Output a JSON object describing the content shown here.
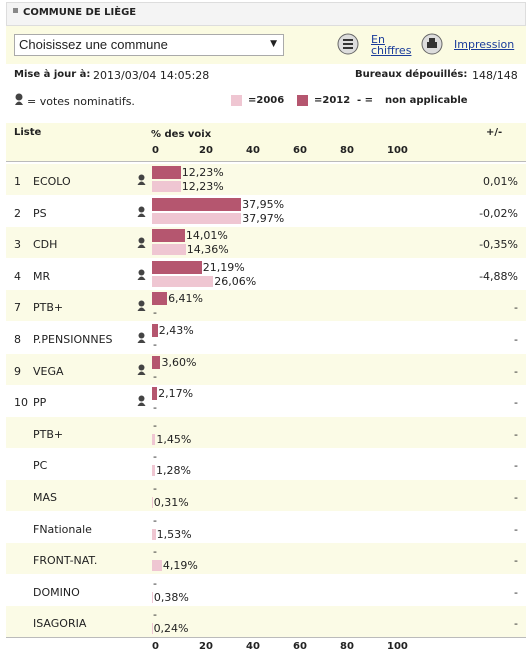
{
  "header": {
    "title": "COMMUNE DE LIÈGE"
  },
  "toolbar": {
    "select": "Choisissez une commune",
    "links": [
      "En chiffres",
      "Impression"
    ]
  },
  "info": {
    "updated_label": "Mise à jour à:",
    "updated": "2013/03/04 14:05:28",
    "bureaux_label": "Bureaux dépouillés:",
    "bureaux": "148/148"
  },
  "legend": {
    "nominatif": "= votes nominatifs.",
    "y2006": "=2006",
    "y2012": "=2012",
    "na_symbol": "- =",
    "na": "non applicable",
    "color_2006": "#efc6d2",
    "color_2012": "#b5566f"
  },
  "table": {
    "columns": [
      "Liste",
      "% des voix",
      "+/-"
    ],
    "ticks": [
      0,
      20,
      40,
      60,
      80,
      100
    ],
    "rows": [
      {
        "num": "1",
        "name": "ECOLO",
        "nominatif": true,
        "p2012": {
          "value": 12.23,
          "label": "12,23%"
        },
        "p2006": {
          "value": 12.23,
          "label": "12,23%"
        },
        "diff": "0,01%"
      },
      {
        "num": "2",
        "name": "PS",
        "nominatif": true,
        "p2012": {
          "value": 37.95,
          "label": "37,95%"
        },
        "p2006": {
          "value": 37.97,
          "label": "37,97%"
        },
        "diff": "-0,02%"
      },
      {
        "num": "3",
        "name": "CDH",
        "nominatif": true,
        "p2012": {
          "value": 14.01,
          "label": "14,01%"
        },
        "p2006": {
          "value": 14.36,
          "label": "14,36%"
        },
        "diff": "-0,35%"
      },
      {
        "num": "4",
        "name": "MR",
        "nominatif": true,
        "p2012": {
          "value": 21.19,
          "label": "21,19%"
        },
        "p2006": {
          "value": 26.06,
          "label": "26,06%"
        },
        "diff": "-4,88%"
      },
      {
        "num": "7",
        "name": "PTB+",
        "nominatif": true,
        "p2012": {
          "value": 6.41,
          "label": "6,41%"
        },
        "p2006": {
          "value": null,
          "label": "-"
        },
        "diff": "-"
      },
      {
        "num": "8",
        "name": "P.PENSIONNES",
        "nominatif": true,
        "p2012": {
          "value": 2.43,
          "label": "2,43%"
        },
        "p2006": {
          "value": null,
          "label": "-"
        },
        "diff": "-"
      },
      {
        "num": "9",
        "name": "VEGA",
        "nominatif": true,
        "p2012": {
          "value": 3.6,
          "label": "3,60%"
        },
        "p2006": {
          "value": null,
          "label": "-"
        },
        "diff": "-"
      },
      {
        "num": "10",
        "name": "PP",
        "nominatif": true,
        "p2012": {
          "value": 2.17,
          "label": "2,17%"
        },
        "p2006": {
          "value": null,
          "label": "-"
        },
        "diff": "-"
      },
      {
        "name": "PTB+",
        "nominatif": false,
        "p2012": {
          "value": null,
          "label": "-"
        },
        "p2006": {
          "value": 1.45,
          "label": "1,45%"
        },
        "diff": "-"
      },
      {
        "name": "PC",
        "nominatif": false,
        "p2012": {
          "value": null,
          "label": "-"
        },
        "p2006": {
          "value": 1.28,
          "label": "1,28%"
        },
        "diff": "-"
      },
      {
        "name": "MAS",
        "nominatif": false,
        "p2012": {
          "value": null,
          "label": "-"
        },
        "p2006": {
          "value": 0.31,
          "label": "0,31%"
        },
        "diff": "-"
      },
      {
        "name": "FNationale",
        "nominatif": false,
        "p2012": {
          "value": null,
          "label": "-"
        },
        "p2006": {
          "value": 1.53,
          "label": "1,53%"
        },
        "diff": "-"
      },
      {
        "name": "FRONT-NAT.",
        "nominatif": false,
        "p2012": {
          "value": null,
          "label": "-"
        },
        "p2006": {
          "value": 4.19,
          "label": "4,19%"
        },
        "diff": "-"
      },
      {
        "name": "DOMINO",
        "nominatif": false,
        "p2012": {
          "value": null,
          "label": "-"
        },
        "p2006": {
          "value": 0.38,
          "label": "0,38%"
        },
        "diff": "-"
      },
      {
        "name": "ISAGORIA",
        "nominatif": false,
        "p2012": {
          "value": null,
          "label": "-"
        },
        "p2006": {
          "value": 0.24,
          "label": "0,24%"
        },
        "diff": "-"
      }
    ]
  }
}
